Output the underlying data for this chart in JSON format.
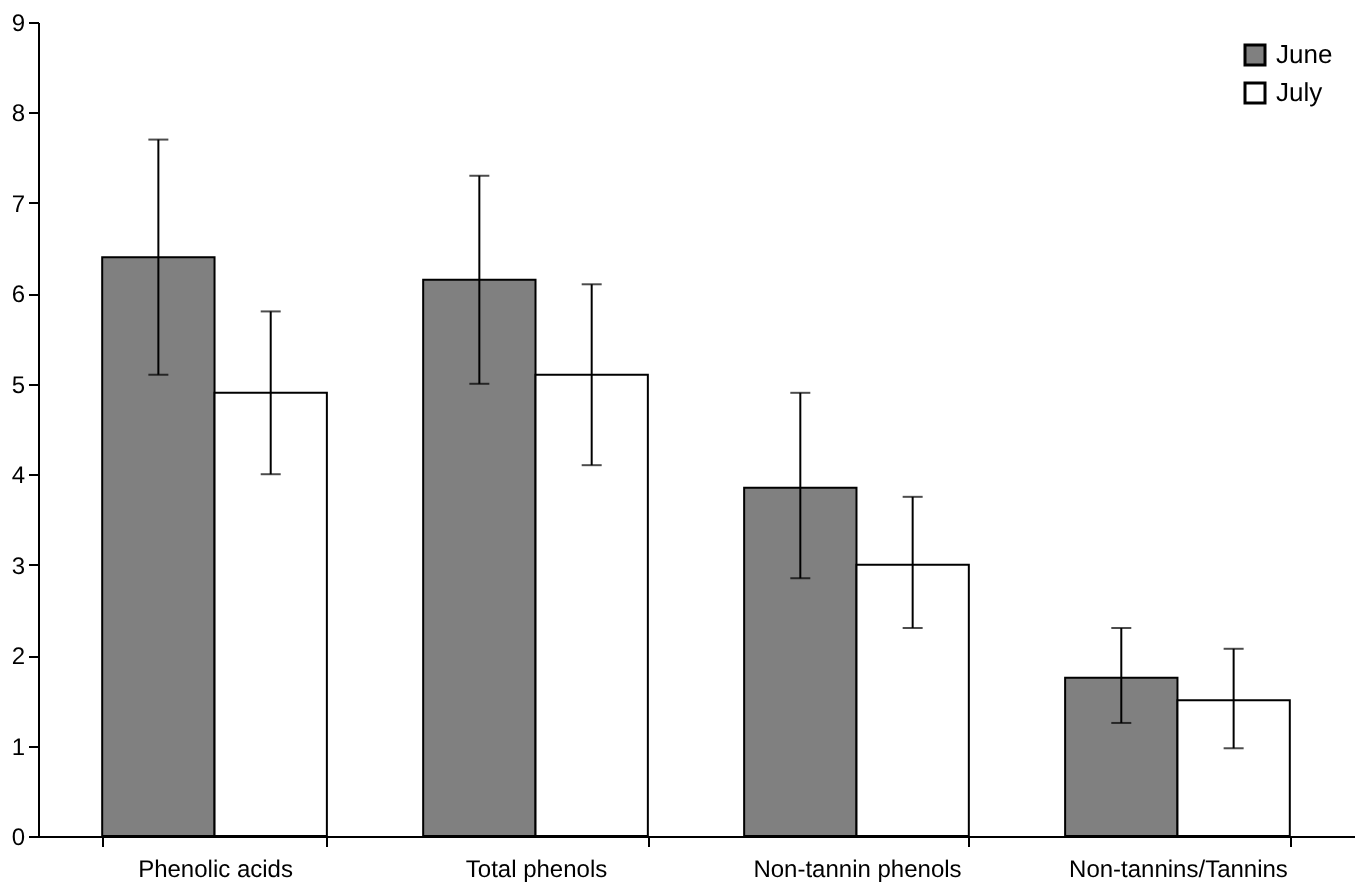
{
  "chart_data": {
    "type": "bar",
    "categories": [
      "Phenolic acids",
      "Total phenols",
      "Non-tannin phenols",
      "Non-tannins/Tannins"
    ],
    "series": [
      {
        "name": "June",
        "color": "#808080",
        "values": [
          6.4,
          6.15,
          3.85,
          1.75
        ],
        "errors": [
          [
            5.1,
            7.7
          ],
          [
            5.0,
            7.3
          ],
          [
            2.85,
            4.9
          ],
          [
            1.25,
            2.3
          ]
        ]
      },
      {
        "name": "July",
        "color": "#ffffff",
        "values": [
          4.9,
          5.1,
          3.0,
          1.5
        ],
        "errors": [
          [
            4.0,
            5.8
          ],
          [
            4.1,
            6.1
          ],
          [
            2.3,
            3.75
          ],
          [
            0.97,
            2.07
          ]
        ]
      }
    ],
    "ylim": [
      0,
      9
    ],
    "yticks": [
      0,
      1,
      2,
      3,
      4,
      5,
      6,
      7,
      8,
      9
    ],
    "grid": false,
    "legend": "top right"
  }
}
